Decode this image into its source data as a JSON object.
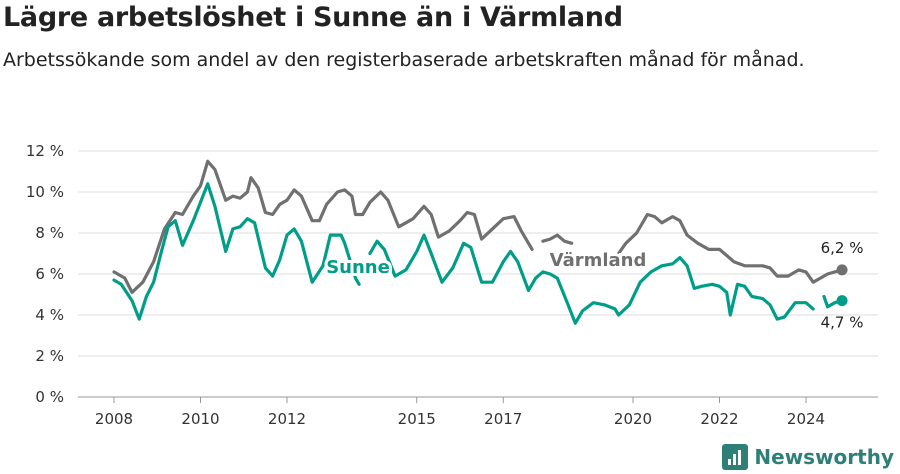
{
  "header": {
    "title": "Lägre arbetslöshet i Sunne än i Värmland",
    "subtitle": "Arbetssökande som andel av den registerbaserade arbetskraften månad för månad."
  },
  "brand": {
    "name": "Newsworthy",
    "icon": "bar-chart-icon",
    "color": "#2f7f79"
  },
  "chart_data": {
    "type": "line",
    "title": "Lägre arbetslöshet i Sunne än i Värmland",
    "subtitle": "Arbetssökande som andel av den registerbaserade arbetskraften månad för månad.",
    "xlim": [
      "2008-01",
      "2025-07"
    ],
    "ylim": [
      0,
      12
    ],
    "x_ticks": [
      "2008",
      "2010",
      "2012",
      "2015",
      "2017",
      "2020",
      "2022",
      "2024"
    ],
    "y_ticks": [
      "0 %",
      "2 %",
      "4 %",
      "6 %",
      "8 %",
      "10 %",
      "12 %"
    ],
    "y_tick_values": [
      0,
      2,
      4,
      6,
      8,
      10,
      12
    ],
    "grid": "horizontal",
    "legend": "direct-labels",
    "series": [
      {
        "name": "Värmland",
        "color": "#707070",
        "end_label": "6,2 %",
        "points": [
          [
            "2008-01",
            6.1
          ],
          [
            "2008-04",
            5.8
          ],
          [
            "2008-06",
            5.1
          ],
          [
            "2008-09",
            5.6
          ],
          [
            "2008-12",
            6.6
          ],
          [
            "2009-03",
            8.2
          ],
          [
            "2009-06",
            9.0
          ],
          [
            "2009-08",
            8.9
          ],
          [
            "2009-11",
            9.8
          ],
          [
            "2010-01",
            10.3
          ],
          [
            "2010-03",
            11.5
          ],
          [
            "2010-05",
            11.1
          ],
          [
            "2010-08",
            9.6
          ],
          [
            "2010-10",
            9.8
          ],
          [
            "2010-12",
            9.7
          ],
          [
            "2011-02",
            10.0
          ],
          [
            "2011-03",
            10.7
          ],
          [
            "2011-05",
            10.2
          ],
          [
            "2011-07",
            9.0
          ],
          [
            "2011-09",
            8.9
          ],
          [
            "2011-11",
            9.4
          ],
          [
            "2012-01",
            9.6
          ],
          [
            "2012-03",
            10.1
          ],
          [
            "2012-05",
            9.8
          ],
          [
            "2012-08",
            8.6
          ],
          [
            "2012-10",
            8.6
          ],
          [
            "2012-12",
            9.4
          ],
          [
            "2013-03",
            10.0
          ],
          [
            "2013-05",
            10.1
          ],
          [
            "2013-07",
            9.8
          ],
          [
            "2013-08",
            8.9
          ],
          [
            "2013-10",
            8.9
          ],
          [
            "2013-12",
            9.5
          ],
          [
            "2014-03",
            10.0
          ],
          [
            "2014-05",
            9.6
          ],
          [
            "2014-08",
            8.3
          ],
          [
            "2014-10",
            8.5
          ],
          [
            "2014-12",
            8.7
          ],
          [
            "2015-03",
            9.3
          ],
          [
            "2015-05",
            8.9
          ],
          [
            "2015-07",
            7.8
          ],
          [
            "2015-10",
            8.1
          ],
          [
            "2016-01",
            8.6
          ],
          [
            "2016-03",
            9.0
          ],
          [
            "2016-05",
            8.9
          ],
          [
            "2016-07",
            7.7
          ],
          [
            "2016-10",
            8.2
          ],
          [
            "2017-01",
            8.7
          ],
          [
            "2017-04",
            8.8
          ],
          [
            "2017-06",
            8.1
          ],
          [
            "2017-09",
            7.2
          ]
        ],
        "points_2": [
          [
            "2017-12",
            7.6
          ],
          [
            "2018-02",
            7.7
          ],
          [
            "2018-04",
            7.9
          ],
          [
            "2018-06",
            7.6
          ],
          [
            "2018-08",
            7.5
          ]
        ],
        "points_3": [
          [
            "2019-09",
            7.0
          ],
          [
            "2019-11",
            7.5
          ],
          [
            "2020-02",
            8.0
          ],
          [
            "2020-05",
            8.9
          ],
          [
            "2020-07",
            8.8
          ],
          [
            "2020-09",
            8.5
          ],
          [
            "2020-12",
            8.8
          ],
          [
            "2021-02",
            8.6
          ],
          [
            "2021-04",
            7.9
          ],
          [
            "2021-07",
            7.5
          ],
          [
            "2021-10",
            7.2
          ],
          [
            "2022-01",
            7.2
          ],
          [
            "2022-03",
            6.9
          ],
          [
            "2022-05",
            6.6
          ],
          [
            "2022-08",
            6.4
          ],
          [
            "2022-10",
            6.4
          ],
          [
            "2023-01",
            6.4
          ],
          [
            "2023-03",
            6.3
          ],
          [
            "2023-05",
            5.9
          ],
          [
            "2023-08",
            5.9
          ],
          [
            "2023-11",
            6.2
          ],
          [
            "2024-01",
            6.1
          ],
          [
            "2024-03",
            5.6
          ],
          [
            "2024-05",
            5.8
          ],
          [
            "2024-07",
            6.0
          ],
          [
            "2024-09",
            6.1
          ],
          [
            "2024-11",
            6.2
          ]
        ]
      },
      {
        "name": "Sunne",
        "color": "#009e89",
        "end_label": "4,7 %",
        "points": [
          [
            "2008-01",
            5.7
          ],
          [
            "2008-03",
            5.5
          ],
          [
            "2008-06",
            4.7
          ],
          [
            "2008-08",
            3.8
          ],
          [
            "2008-10",
            4.9
          ],
          [
            "2008-12",
            5.6
          ],
          [
            "2009-02",
            7.0
          ],
          [
            "2009-04",
            8.3
          ],
          [
            "2009-06",
            8.6
          ],
          [
            "2009-08",
            7.4
          ],
          [
            "2009-11",
            8.6
          ],
          [
            "2010-01",
            9.5
          ],
          [
            "2010-03",
            10.4
          ],
          [
            "2010-05",
            9.3
          ],
          [
            "2010-08",
            7.1
          ],
          [
            "2010-10",
            8.2
          ],
          [
            "2010-12",
            8.3
          ],
          [
            "2011-02",
            8.7
          ],
          [
            "2011-04",
            8.5
          ],
          [
            "2011-07",
            6.3
          ],
          [
            "2011-09",
            5.9
          ],
          [
            "2011-11",
            6.7
          ],
          [
            "2012-01",
            7.9
          ],
          [
            "2012-03",
            8.2
          ],
          [
            "2012-05",
            7.6
          ],
          [
            "2012-08",
            5.6
          ],
          [
            "2012-11",
            6.4
          ],
          [
            "2013-01",
            7.9
          ],
          [
            "2013-04",
            7.9
          ],
          [
            "2013-05",
            7.5
          ],
          [
            "2013-08",
            5.8
          ],
          [
            "2013-09",
            5.5
          ]
        ],
        "points_2": [
          [
            "2013-12",
            7.0
          ],
          [
            "2014-02",
            7.6
          ],
          [
            "2014-04",
            7.2
          ],
          [
            "2014-07",
            5.9
          ],
          [
            "2014-10",
            6.2
          ],
          [
            "2015-01",
            7.1
          ],
          [
            "2015-03",
            7.9
          ],
          [
            "2015-05",
            7.0
          ],
          [
            "2015-08",
            5.6
          ],
          [
            "2015-11",
            6.3
          ],
          [
            "2016-02",
            7.5
          ],
          [
            "2016-04",
            7.3
          ],
          [
            "2016-07",
            5.6
          ],
          [
            "2016-10",
            5.6
          ],
          [
            "2017-01",
            6.6
          ],
          [
            "2017-03",
            7.1
          ],
          [
            "2017-05",
            6.6
          ],
          [
            "2017-08",
            5.2
          ],
          [
            "2017-10",
            5.8
          ],
          [
            "2017-12",
            6.1
          ],
          [
            "2018-02",
            6.0
          ],
          [
            "2018-04",
            5.8
          ],
          [
            "2018-07",
            4.5
          ],
          [
            "2018-09",
            3.6
          ],
          [
            "2018-11",
            4.2
          ],
          [
            "2019-02",
            4.6
          ],
          [
            "2019-05",
            4.5
          ],
          [
            "2019-08",
            4.3
          ],
          [
            "2019-09",
            4.0
          ],
          [
            "2019-12",
            4.5
          ],
          [
            "2020-03",
            5.6
          ],
          [
            "2020-06",
            6.1
          ],
          [
            "2020-09",
            6.4
          ],
          [
            "2020-12",
            6.5
          ],
          [
            "2021-02",
            6.8
          ],
          [
            "2021-04",
            6.4
          ],
          [
            "2021-06",
            5.3
          ],
          [
            "2021-08",
            5.4
          ],
          [
            "2021-11",
            5.5
          ],
          [
            "2022-01",
            5.4
          ],
          [
            "2022-03",
            5.1
          ],
          [
            "2022-04",
            4.0
          ],
          [
            "2022-06",
            5.5
          ],
          [
            "2022-08",
            5.4
          ],
          [
            "2022-10",
            4.9
          ],
          [
            "2023-01",
            4.8
          ],
          [
            "2023-03",
            4.5
          ],
          [
            "2023-05",
            3.8
          ],
          [
            "2023-07",
            3.9
          ],
          [
            "2023-10",
            4.6
          ],
          [
            "2024-01",
            4.6
          ],
          [
            "2024-03",
            4.3
          ]
        ],
        "points_3": [
          [
            "2024-06",
            4.9
          ],
          [
            "2024-07",
            4.4
          ],
          [
            "2024-09",
            4.6
          ],
          [
            "2024-11",
            4.7
          ]
        ]
      }
    ]
  }
}
